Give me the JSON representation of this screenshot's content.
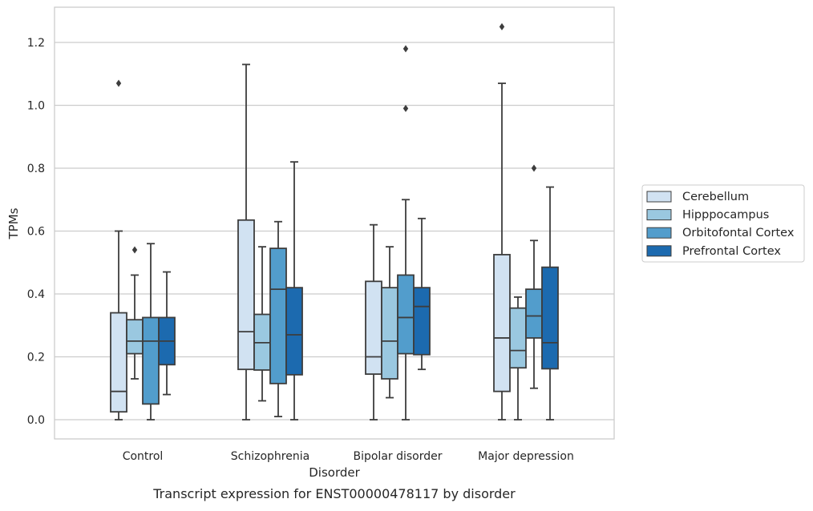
{
  "chart_data": {
    "type": "box",
    "caption": "Transcript expression for ENST00000478117 by disorder",
    "xlabel": "Disorder",
    "ylabel": "TPMs",
    "ylim": [
      -0.06,
      1.32
    ],
    "yticks": [
      0.0,
      0.2,
      0.4,
      0.6,
      0.8,
      1.0,
      1.2
    ],
    "ytick_labels": [
      "0.0",
      "0.2",
      "0.4",
      "0.6",
      "0.8",
      "1.0",
      "1.2"
    ],
    "grid": "horizontal",
    "legend_position": "right",
    "categories": [
      "Control",
      "Schizophrenia",
      "Bipolar disorder",
      "Major depression"
    ],
    "series": [
      {
        "name": "Cerebellum",
        "color": "#d1e2f2",
        "boxes": [
          {
            "whisker_low": 0.0,
            "q1": 0.025,
            "median": 0.09,
            "q3": 0.34,
            "whisker_high": 0.6,
            "outliers": [
              1.07
            ]
          },
          {
            "whisker_low": 0.0,
            "q1": 0.16,
            "median": 0.28,
            "q3": 0.635,
            "whisker_high": 1.13,
            "outliers": []
          },
          {
            "whisker_low": 0.0,
            "q1": 0.145,
            "median": 0.2,
            "q3": 0.44,
            "whisker_high": 0.62,
            "outliers": []
          },
          {
            "whisker_low": 0.0,
            "q1": 0.09,
            "median": 0.26,
            "q3": 0.525,
            "whisker_high": 1.07,
            "outliers": [
              1.25
            ]
          }
        ]
      },
      {
        "name": "Hipppocampus",
        "color": "#9ac8e0",
        "boxes": [
          {
            "whisker_low": 0.13,
            "q1": 0.21,
            "median": 0.25,
            "q3": 0.318,
            "whisker_high": 0.46,
            "outliers": [
              0.54
            ]
          },
          {
            "whisker_low": 0.06,
            "q1": 0.158,
            "median": 0.245,
            "q3": 0.335,
            "whisker_high": 0.55,
            "outliers": []
          },
          {
            "whisker_low": 0.07,
            "q1": 0.13,
            "median": 0.25,
            "q3": 0.42,
            "whisker_high": 0.55,
            "outliers": []
          },
          {
            "whisker_low": 0.0,
            "q1": 0.165,
            "median": 0.22,
            "q3": 0.355,
            "whisker_high": 0.39,
            "outliers": []
          }
        ]
      },
      {
        "name": "Orbitofontal Cortex",
        "color": "#529dcc",
        "boxes": [
          {
            "whisker_low": 0.0,
            "q1": 0.05,
            "median": 0.25,
            "q3": 0.325,
            "whisker_high": 0.56,
            "outliers": []
          },
          {
            "whisker_low": 0.01,
            "q1": 0.115,
            "median": 0.415,
            "q3": 0.545,
            "whisker_high": 0.63,
            "outliers": []
          },
          {
            "whisker_low": 0.0,
            "q1": 0.21,
            "median": 0.325,
            "q3": 0.46,
            "whisker_high": 0.7,
            "outliers": [
              0.99,
              1.18
            ]
          },
          {
            "whisker_low": 0.1,
            "q1": 0.26,
            "median": 0.33,
            "q3": 0.415,
            "whisker_high": 0.57,
            "outliers": [
              0.8
            ]
          }
        ]
      },
      {
        "name": "Prefrontal Cortex",
        "color": "#1c6aaf",
        "boxes": [
          {
            "whisker_low": 0.08,
            "q1": 0.175,
            "median": 0.25,
            "q3": 0.325,
            "whisker_high": 0.47,
            "outliers": []
          },
          {
            "whisker_low": 0.0,
            "q1": 0.143,
            "median": 0.27,
            "q3": 0.42,
            "whisker_high": 0.82,
            "outliers": []
          },
          {
            "whisker_low": 0.16,
            "q1": 0.207,
            "median": 0.36,
            "q3": 0.42,
            "whisker_high": 0.64,
            "outliers": []
          },
          {
            "whisker_low": 0.0,
            "q1": 0.162,
            "median": 0.245,
            "q3": 0.485,
            "whisker_high": 0.74,
            "outliers": []
          }
        ]
      }
    ]
  }
}
